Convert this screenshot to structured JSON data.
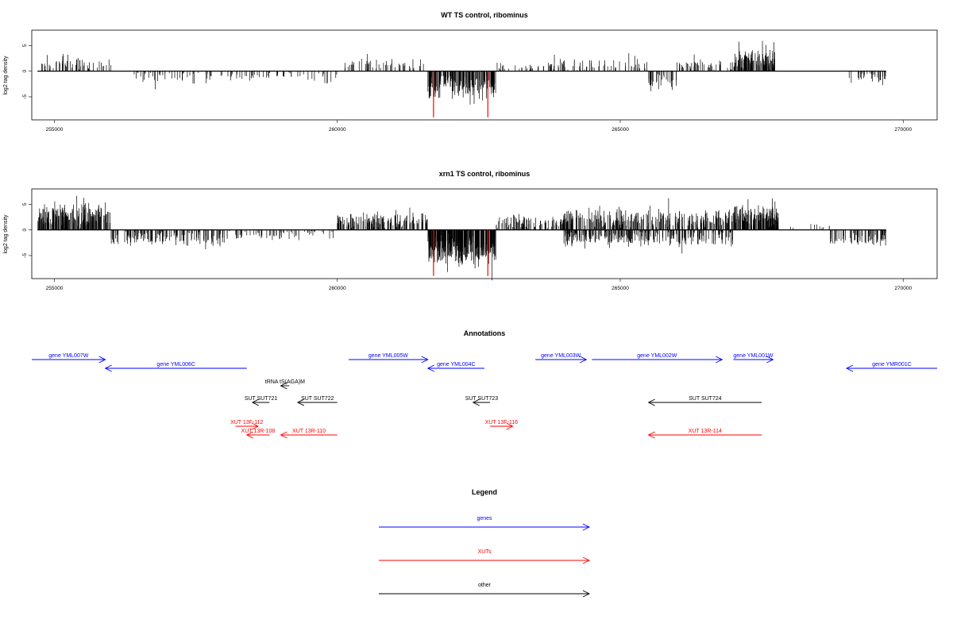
{
  "chart_data": [
    {
      "type": "bar",
      "title": "WT TS control, ribominus",
      "xlabel": "",
      "ylabel": "log2 tag density",
      "xlim": [
        254600,
        270600
      ],
      "ylim": [
        -9.5,
        8.0
      ],
      "x_ticks": [
        "255000",
        "260000",
        "265000",
        "270000"
      ],
      "y_ticks": [
        "-5",
        "0",
        "5"
      ],
      "markers": {
        "color": "#ff0000",
        "x": [
          261700,
          262660
        ],
        "values": [
          -9.0,
          -9.0
        ]
      },
      "series": [
        {
          "color": "#000000",
          "segments": [
            {
              "x": [
                254700,
                255050
              ],
              "level": 2.0,
              "var": 1.2,
              "density": 5,
              "sign": 1
            },
            {
              "x": [
                255050,
                255500
              ],
              "level": 2.0,
              "var": 1.0,
              "density": 8,
              "sign": 1
            },
            {
              "x": [
                255500,
                256000
              ],
              "level": 1.5,
              "var": 0.8,
              "density": 5,
              "sign": 1
            },
            {
              "x": [
                256400,
                258800
              ],
              "level": 1.5,
              "var": 0.8,
              "density": 4,
              "sign": -1
            },
            {
              "x": [
                258800,
                259500
              ],
              "level": 1.0,
              "var": 0.6,
              "density": 3,
              "sign": -1
            },
            {
              "x": [
                259500,
                260000
              ],
              "level": 1.5,
              "var": 0.8,
              "density": 3,
              "sign": -1
            },
            {
              "x": [
                260050,
                261200
              ],
              "level": 1.5,
              "var": 0.8,
              "density": 5,
              "sign": 1
            },
            {
              "x": [
                261200,
                261600
              ],
              "level": 1.5,
              "var": 0.7,
              "density": 3,
              "sign": 1
            },
            {
              "x": [
                261600,
                262800
              ],
              "level": 3.5,
              "var": 1.2,
              "density": 20,
              "sign": -1
            },
            {
              "x": [
                262800,
                263500
              ],
              "level": 1.2,
              "var": 0.6,
              "density": 4,
              "sign": 1
            },
            {
              "x": [
                263500,
                265500
              ],
              "level": 1.5,
              "var": 0.8,
              "density": 5,
              "sign": 1
            },
            {
              "x": [
                265500,
                266000
              ],
              "level": 2.5,
              "var": 1.0,
              "density": 8,
              "sign": -1
            },
            {
              "x": [
                266000,
                267000
              ],
              "level": 1.5,
              "var": 0.8,
              "density": 6,
              "sign": 1
            },
            {
              "x": [
                267000,
                267750
              ],
              "level": 2.7,
              "var": 1.1,
              "density": 22,
              "sign": 1
            },
            {
              "x": [
                269000,
                269700
              ],
              "level": 1.5,
              "var": 0.7,
              "density": 6,
              "sign": -1
            }
          ]
        }
      ]
    },
    {
      "type": "bar",
      "title": "xrn1 TS control, ribominus",
      "xlabel": "",
      "ylabel": "log2 tag density",
      "xlim": [
        254600,
        270600
      ],
      "ylim": [
        -9.5,
        8.0
      ],
      "x_ticks": [
        "255000",
        "260000",
        "265000",
        "270000"
      ],
      "y_ticks": [
        "-5",
        "0",
        "5"
      ],
      "markers": {
        "color": "#ff0000",
        "x": [
          261700,
          262660
        ],
        "values": [
          -9.0,
          -9.0
        ]
      },
      "series": [
        {
          "color": "#000000",
          "segments": [
            {
              "x": [
                254700,
                256000
              ],
              "level": 3.5,
              "var": 1.2,
              "density": 22,
              "sign": 1
            },
            {
              "x": [
                256000,
                258000
              ],
              "level": 2.0,
              "var": 1.0,
              "density": 10,
              "sign": -1
            },
            {
              "x": [
                258000,
                259000
              ],
              "level": 1.2,
              "var": 0.7,
              "density": 5,
              "sign": -1
            },
            {
              "x": [
                259000,
                260000
              ],
              "level": 1.0,
              "var": 0.6,
              "density": 4,
              "sign": -1
            },
            {
              "x": [
                260000,
                261600
              ],
              "level": 2.2,
              "var": 1.0,
              "density": 14,
              "sign": 1
            },
            {
              "x": [
                261600,
                262800
              ],
              "level": 4.5,
              "var": 1.2,
              "density": 35,
              "sign": -1
            },
            {
              "x": [
                262800,
                264000
              ],
              "level": 2.0,
              "var": 1.0,
              "density": 10,
              "sign": 1
            },
            {
              "x": [
                264000,
                267000
              ],
              "level": 2.5,
              "var": 1.2,
              "density": 14,
              "sign": 1
            },
            {
              "x": [
                264000,
                267000
              ],
              "level": 2.0,
              "var": 1.0,
              "density": 12,
              "sign": -1
            },
            {
              "x": [
                267000,
                267800
              ],
              "level": 3.3,
              "var": 1.0,
              "density": 25,
              "sign": 1
            },
            {
              "x": [
                268000,
                268700
              ],
              "level": 1.0,
              "var": 0.4,
              "density": 2,
              "sign": 1
            },
            {
              "x": [
                268700,
                269700
              ],
              "level": 2.2,
              "var": 0.8,
              "density": 10,
              "sign": -1
            }
          ]
        }
      ]
    }
  ],
  "annotations": {
    "title": "Annotations",
    "features": [
      {
        "label": "gene YML007W",
        "x": [
          254600,
          255900
        ],
        "dir": "right",
        "row": 1,
        "type": "gene"
      },
      {
        "label": "gene YML006C",
        "x": [
          255900,
          258400
        ],
        "dir": "left",
        "row": 2,
        "type": "gene"
      },
      {
        "label": "gene YML005W",
        "x": [
          260200,
          261600
        ],
        "dir": "right",
        "row": 1,
        "type": "gene"
      },
      {
        "label": "gene YML004C",
        "x": [
          261600,
          262600
        ],
        "dir": "left",
        "row": 2,
        "type": "gene"
      },
      {
        "label": "gene YML003W",
        "x": [
          263500,
          264400
        ],
        "dir": "right",
        "row": 1,
        "type": "gene"
      },
      {
        "label": "gene YML002W",
        "x": [
          264500,
          266800
        ],
        "dir": "right",
        "row": 1,
        "type": "gene"
      },
      {
        "label": "gene YML001W",
        "x": [
          267000,
          267700
        ],
        "dir": "right",
        "row": 1,
        "type": "gene"
      },
      {
        "label": "gene YMR001C",
        "x": [
          269000,
          270600
        ],
        "dir": "left",
        "row": 2,
        "type": "gene"
      },
      {
        "label": "tRNA tS(AGA)M",
        "x": [
          259000,
          259150
        ],
        "dir": "left",
        "row": 3,
        "type": "other"
      },
      {
        "label": "SUT SUT721",
        "x": [
          258500,
          258800
        ],
        "dir": "left",
        "row": 4,
        "type": "other"
      },
      {
        "label": "SUT SUT722",
        "x": [
          259300,
          260000
        ],
        "dir": "left",
        "row": 4,
        "type": "other"
      },
      {
        "label": "SUT SUT723",
        "x": [
          262400,
          262700
        ],
        "dir": "left",
        "row": 4,
        "type": "other"
      },
      {
        "label": "SUT SUT724",
        "x": [
          265500,
          267500
        ],
        "dir": "left",
        "row": 4,
        "type": "other"
      },
      {
        "label": "XUT 13F-112",
        "x": [
          258200,
          258600
        ],
        "dir": "right",
        "row": 5,
        "type": "xut"
      },
      {
        "label": "XUT 13R-108",
        "x": [
          258400,
          258800
        ],
        "dir": "left",
        "row": 6,
        "type": "xut"
      },
      {
        "label": "XUT 13R-110",
        "x": [
          259000,
          260000
        ],
        "dir": "left",
        "row": 6,
        "type": "xut"
      },
      {
        "label": "XUT 13F-116",
        "x": [
          262700,
          263100
        ],
        "dir": "right",
        "row": 5,
        "type": "xut"
      },
      {
        "label": "XUT 13R-114",
        "x": [
          265500,
          267500
        ],
        "dir": "left",
        "row": 6,
        "type": "xut"
      }
    ]
  },
  "legend": {
    "title": "Legend",
    "items": [
      {
        "label": "genes",
        "color": "#0000ff"
      },
      {
        "label": "XUTs",
        "color": "#ff0000"
      },
      {
        "label": "other",
        "color": "#000000"
      }
    ]
  },
  "colors": {
    "gene": "#0000ff",
    "xut": "#ff0000",
    "other": "#000000"
  }
}
